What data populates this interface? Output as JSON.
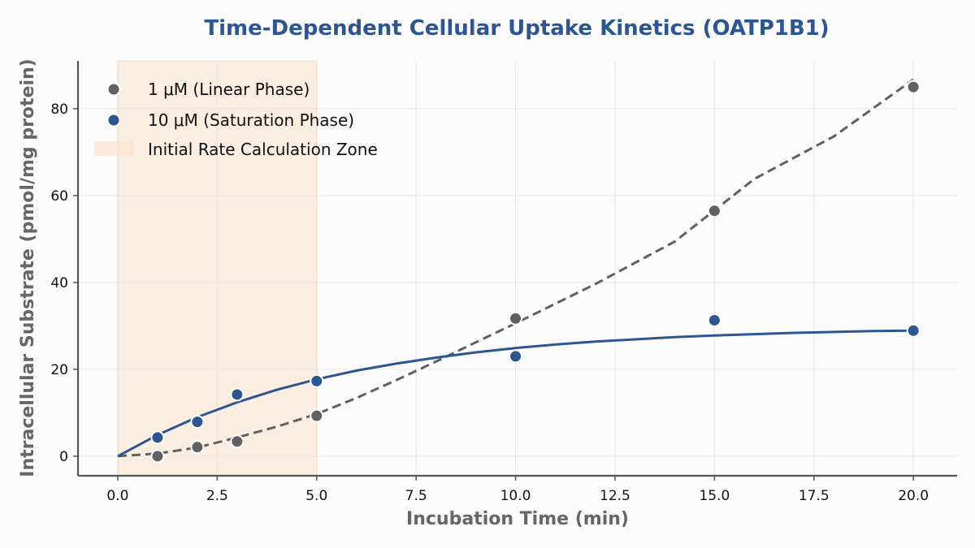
{
  "chart_data": {
    "type": "scatter",
    "title": "Time-Dependent Cellular Uptake Kinetics (OATP1B1)",
    "xlabel": "Incubation Time (min)",
    "ylabel": "Intracellular Substrate (pmol/mg protein)",
    "xlim": [
      -1,
      21.1
    ],
    "ylim": [
      -4.5,
      91
    ],
    "x_ticks": [
      0,
      2.5,
      5,
      7.5,
      10,
      12.5,
      15,
      17.5,
      20
    ],
    "x_tick_labels": [
      "0.0",
      "2.5",
      "5.0",
      "7.5",
      "10.0",
      "12.5",
      "15.0",
      "17.5",
      "20.0"
    ],
    "y_ticks": [
      0,
      20,
      40,
      60,
      80
    ],
    "y_tick_labels": [
      "0",
      "20",
      "40",
      "60",
      "80"
    ],
    "grid": true,
    "legend_position": "top-left",
    "shaded_region": {
      "x": [
        0,
        5
      ],
      "label": "Initial Rate Calculation Zone",
      "color": "#fbe3cf"
    },
    "series": [
      {
        "name": "1 μM (Linear Phase)",
        "color": "#616161",
        "x": [
          1,
          2,
          3,
          5,
          10,
          15,
          20
        ],
        "y": [
          0.0,
          2.1,
          3.4,
          9.3,
          31.7,
          56.5,
          85.0
        ],
        "fit_line": "dashed",
        "fit_points": [
          [
            0,
            0
          ],
          [
            1,
            0.6
          ],
          [
            2,
            2.0
          ],
          [
            3,
            4.3
          ],
          [
            4,
            6.8
          ],
          [
            5,
            9.7
          ],
          [
            6,
            13.4
          ],
          [
            7,
            17.5
          ],
          [
            8,
            21.8
          ],
          [
            9,
            26.2
          ],
          [
            10,
            30.6
          ],
          [
            12,
            39.6
          ],
          [
            14,
            49.4
          ],
          [
            16,
            63.8
          ],
          [
            18,
            73.6
          ],
          [
            20,
            86.7
          ]
        ]
      },
      {
        "name": "10 μM (Saturation Phase)",
        "color": "#2c5593",
        "x": [
          1,
          2,
          3,
          5,
          10,
          15,
          20
        ],
        "y": [
          4.3,
          7.9,
          14.2,
          17.3,
          23.0,
          31.3,
          28.9
        ],
        "fit_line": "solid",
        "fit_points": [
          [
            0,
            0
          ],
          [
            1,
            4.9
          ],
          [
            2,
            9.0
          ],
          [
            3,
            12.4
          ],
          [
            4,
            15.3
          ],
          [
            5,
            17.7
          ],
          [
            6,
            19.7
          ],
          [
            7,
            21.3
          ],
          [
            8,
            22.7
          ],
          [
            9,
            23.9
          ],
          [
            10,
            24.9
          ],
          [
            11,
            25.7
          ],
          [
            12,
            26.4
          ],
          [
            13,
            26.9
          ],
          [
            14,
            27.4
          ],
          [
            15,
            27.8
          ],
          [
            16,
            28.1
          ],
          [
            17,
            28.4
          ],
          [
            18,
            28.6
          ],
          [
            19,
            28.8
          ],
          [
            20,
            28.9
          ]
        ]
      }
    ]
  }
}
